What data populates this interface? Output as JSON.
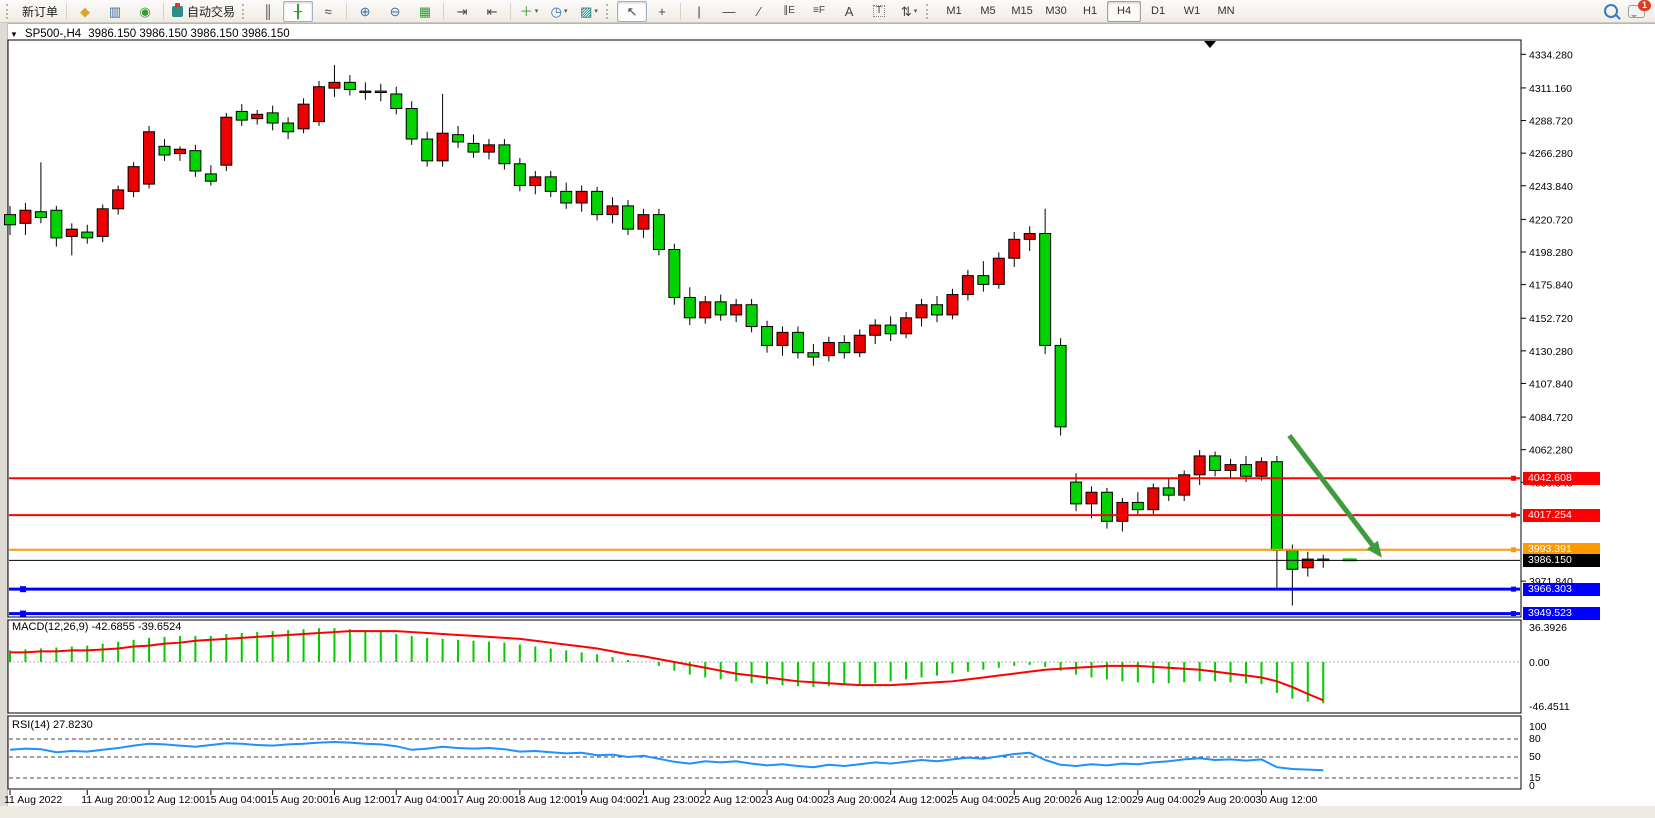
{
  "toolbar": {
    "new_order_label": "新订单",
    "autotrading_label": "自动交易",
    "badge_count": "1",
    "icons": {
      "metaeditor": "◆",
      "market_watch": "▥",
      "signals": "◉",
      "bar_chart": "║",
      "candle_chart": "╂",
      "line_chart": "≈",
      "zoom_in": "⊕",
      "zoom_out": "⊖",
      "tile_windows": "▦",
      "auto_scroll": "⇥",
      "chart_shift": "⇤",
      "indicators": "＋",
      "periods": "◷",
      "templates": "▨",
      "cursor": "↖",
      "crosshair": "+",
      "vertical_line": "|",
      "horizontal_line": "—",
      "trendline": "∕",
      "channel": "∥E",
      "fibonacci": "≡F",
      "text": "A",
      "text_label": "T",
      "arrows": "⇅",
      "caret": "▾"
    },
    "timeframes": [
      {
        "label": "M1",
        "active": false
      },
      {
        "label": "M5",
        "active": false
      },
      {
        "label": "M15",
        "active": false
      },
      {
        "label": "M30",
        "active": false
      },
      {
        "label": "H1",
        "active": false
      },
      {
        "label": "H4",
        "active": true
      },
      {
        "label": "D1",
        "active": false
      },
      {
        "label": "W1",
        "active": false
      },
      {
        "label": "MN",
        "active": false
      }
    ]
  },
  "chart": {
    "expander_glyph": "▼",
    "symbol_period": "SP500-,H4",
    "ohlc_text": "3986.150 3986.150 3986.150 3986.150"
  },
  "chart_data": {
    "type": "candlestick",
    "symbol": "SP500-",
    "period": "H4",
    "colors": {
      "bull": "#ee0000",
      "bear": "#00d300",
      "wick": "#000000",
      "hline_red": "#ff0000",
      "hline_orange": "#ff9900",
      "hline_blue": "#0000ff",
      "price_line": "#000000",
      "price_label_bg": "#000000",
      "macd_hist": "#00cc00",
      "macd_signal": "#ff0000",
      "rsi_line": "#1e90ff",
      "arrow": "#3e9b3e"
    },
    "price_axis": {
      "ticks": [
        "4334.280",
        "4311.160",
        "4288.720",
        "4266.280",
        "4243.840",
        "4220.720",
        "4198.280",
        "4175.840",
        "4152.720",
        "4130.280",
        "4107.840",
        "4084.720",
        "4062.280",
        "4039.840",
        "3971.840"
      ]
    },
    "hlines": [
      {
        "price": 4042.608,
        "label": "4042.608",
        "color": "#ff0000",
        "width": 2,
        "selected": false
      },
      {
        "price": 4017.254,
        "label": "4017.254",
        "color": "#ff0000",
        "width": 2,
        "selected": false
      },
      {
        "price": 3993.391,
        "label": "3993.391",
        "color": "#ff9900",
        "width": 2,
        "selected": false
      },
      {
        "price": 3966.303,
        "label": "3966.303",
        "color": "#0000ff",
        "width": 3,
        "selected": true
      },
      {
        "price": 3949.523,
        "label": "3949.523",
        "color": "#0000ff",
        "width": 3,
        "selected": true
      }
    ],
    "current_price": {
      "value": 3986.15,
      "label": "3986.150"
    },
    "arrow": {
      "from_bar": 82.8,
      "from_price": 4072,
      "to_bar": 88.8,
      "to_price": 3988
    },
    "time_labels": [
      {
        "bar": 0,
        "label": "11 Aug 2022"
      },
      {
        "bar": 5,
        "label": "11 Aug 20:00"
      },
      {
        "bar": 9,
        "label": "12 Aug 12:00"
      },
      {
        "bar": 13,
        "label": "15 Aug 04:00"
      },
      {
        "bar": 17,
        "label": "15 Aug 20:00"
      },
      {
        "bar": 21,
        "label": "16 Aug 12:00"
      },
      {
        "bar": 25,
        "label": "17 Aug 04:00"
      },
      {
        "bar": 29,
        "label": "17 Aug 20:00"
      },
      {
        "bar": 33,
        "label": "18 Aug 12:00"
      },
      {
        "bar": 37,
        "label": "19 Aug 04:00"
      },
      {
        "bar": 41,
        "label": "21 Aug 23:00"
      },
      {
        "bar": 45,
        "label": "22 Aug 12:00"
      },
      {
        "bar": 49,
        "label": "23 Aug 04:00"
      },
      {
        "bar": 53,
        "label": "23 Aug 20:00"
      },
      {
        "bar": 57,
        "label": "24 Aug 12:00"
      },
      {
        "bar": 61,
        "label": "25 Aug 04:00"
      },
      {
        "bar": 65,
        "label": "25 Aug 20:00"
      },
      {
        "bar": 69,
        "label": "26 Aug 12:00"
      },
      {
        "bar": 73,
        "label": "29 Aug 04:00"
      },
      {
        "bar": 77,
        "label": "29 Aug 20:00"
      },
      {
        "bar": 81,
        "label": "30 Aug 12:00"
      }
    ],
    "candles": [
      [
        4224,
        4230,
        4210,
        4217
      ],
      [
        4218,
        4232,
        4210,
        4227
      ],
      [
        4226,
        4260,
        4218,
        4222
      ],
      [
        4227,
        4230,
        4202,
        4208
      ],
      [
        4209,
        4218,
        4196,
        4214
      ],
      [
        4212,
        4217,
        4204,
        4208
      ],
      [
        4209,
        4231,
        4205,
        4228
      ],
      [
        4228,
        4244,
        4224,
        4241
      ],
      [
        4240,
        4260,
        4236,
        4257
      ],
      [
        4245,
        4285,
        4242,
        4281
      ],
      [
        4271,
        4276,
        4261,
        4265
      ],
      [
        4266,
        4271,
        4261,
        4269
      ],
      [
        4268,
        4272,
        4250,
        4254
      ],
      [
        4252,
        4258,
        4244,
        4247
      ],
      [
        4258,
        4294,
        4254,
        4291
      ],
      [
        4295,
        4300,
        4285,
        4289
      ],
      [
        4290,
        4296,
        4286,
        4293
      ],
      [
        4294,
        4299,
        4282,
        4287
      ],
      [
        4287,
        4291,
        4276,
        4281
      ],
      [
        4283,
        4304,
        4280,
        4300
      ],
      [
        4288,
        4316,
        4285,
        4312
      ],
      [
        4311,
        4327,
        4305,
        4315
      ],
      [
        4315,
        4320,
        4306,
        4310
      ],
      [
        4309,
        4315,
        4303,
        4309
      ],
      [
        4309,
        4314,
        4302,
        4308
      ],
      [
        4307,
        4312,
        4293,
        4297
      ],
      [
        4297,
        4302,
        4272,
        4276
      ],
      [
        4276,
        4281,
        4257,
        4261
      ],
      [
        4261,
        4307,
        4257,
        4280
      ],
      [
        4279,
        4285,
        4270,
        4274
      ],
      [
        4273,
        4279,
        4263,
        4267
      ],
      [
        4267,
        4276,
        4262,
        4272
      ],
      [
        4272,
        4276,
        4255,
        4259
      ],
      [
        4259,
        4263,
        4240,
        4244
      ],
      [
        4244,
        4254,
        4238,
        4250
      ],
      [
        4250,
        4254,
        4236,
        4240
      ],
      [
        4240,
        4246,
        4228,
        4232
      ],
      [
        4232,
        4244,
        4226,
        4240
      ],
      [
        4240,
        4243,
        4220,
        4224
      ],
      [
        4224,
        4236,
        4218,
        4230
      ],
      [
        4230,
        4234,
        4210,
        4214
      ],
      [
        4214,
        4228,
        4208,
        4224
      ],
      [
        4224,
        4228,
        4196,
        4200
      ],
      [
        4200,
        4204,
        4162,
        4167
      ],
      [
        4167,
        4174,
        4148,
        4153
      ],
      [
        4153,
        4168,
        4149,
        4164
      ],
      [
        4164,
        4169,
        4151,
        4155
      ],
      [
        4155,
        4166,
        4150,
        4162
      ],
      [
        4162,
        4166,
        4143,
        4147
      ],
      [
        4147,
        4151,
        4129,
        4134
      ],
      [
        4134,
        4147,
        4127,
        4143
      ],
      [
        4143,
        4147,
        4125,
        4129
      ],
      [
        4129,
        4135,
        4120,
        4126
      ],
      [
        4127,
        4140,
        4123,
        4136
      ],
      [
        4136,
        4141,
        4125,
        4129
      ],
      [
        4129,
        4145,
        4126,
        4141
      ],
      [
        4141,
        4152,
        4135,
        4148
      ],
      [
        4148,
        4154,
        4137,
        4142
      ],
      [
        4142,
        4157,
        4139,
        4153
      ],
      [
        4153,
        4166,
        4147,
        4162
      ],
      [
        4162,
        4168,
        4150,
        4155
      ],
      [
        4155,
        4173,
        4152,
        4169
      ],
      [
        4169,
        4186,
        4165,
        4182
      ],
      [
        4182,
        4192,
        4171,
        4176
      ],
      [
        4176,
        4198,
        4173,
        4194
      ],
      [
        4194,
        4212,
        4188,
        4207
      ],
      [
        4207,
        4216,
        4199,
        4211
      ],
      [
        4211,
        4228,
        4128,
        4134
      ],
      [
        4134,
        4139,
        4072,
        4078
      ],
      [
        4040,
        4046,
        4020,
        4025
      ],
      [
        4025,
        4037,
        4015,
        4033
      ],
      [
        4033,
        4036,
        4008,
        4013
      ],
      [
        4013,
        4029,
        4006,
        4026
      ],
      [
        4026,
        4033,
        4017,
        4021
      ],
      [
        4021,
        4039,
        4017,
        4036
      ],
      [
        4036,
        4043,
        4027,
        4031
      ],
      [
        4031,
        4048,
        4027,
        4045
      ],
      [
        4045,
        4062,
        4038,
        4058
      ],
      [
        4058,
        4061,
        4044,
        4048
      ],
      [
        4048,
        4056,
        4042,
        4052
      ],
      [
        4052,
        4058,
        4040,
        4044
      ],
      [
        4044,
        4057,
        4041,
        4054
      ],
      [
        4054,
        4058,
        3966,
        3993
      ],
      [
        3993,
        3997,
        3955,
        3980
      ],
      [
        3981,
        3992,
        3975,
        3987
      ],
      [
        3987,
        3990,
        3981,
        3986
      ]
    ],
    "macd": {
      "label": "MACD(12,26,9)",
      "values_label": "-42.6855 -39.6524",
      "axis": {
        "max_label": "36.3926",
        "zero_label": "0.00",
        "min_label": "-46.4511"
      },
      "histogram": [
        12,
        13,
        14,
        15,
        16,
        17,
        19,
        21,
        23,
        25,
        26,
        27,
        27,
        27,
        29,
        30,
        31,
        32,
        33,
        34,
        35,
        35,
        34,
        33,
        31,
        29,
        27,
        25,
        24,
        23,
        22,
        21,
        20,
        18,
        16,
        14,
        12,
        10,
        8,
        5,
        2,
        0,
        -4,
        -9,
        -13,
        -16,
        -18,
        -20,
        -22,
        -23,
        -24,
        -25,
        -26,
        -25,
        -24,
        -23,
        -22,
        -20,
        -18,
        -16,
        -14,
        -12,
        -10,
        -8,
        -6,
        -4,
        -3,
        -5,
        -9,
        -13,
        -16,
        -18,
        -20,
        -21,
        -22,
        -22,
        -21,
        -20,
        -20,
        -21,
        -22,
        -23,
        -32,
        -38,
        -41,
        -42.7
      ],
      "signal": [
        10,
        10,
        11,
        11,
        12,
        12,
        13,
        14,
        16,
        17,
        19,
        20,
        22,
        23,
        24,
        25,
        26,
        27,
        28,
        29,
        30,
        31,
        32,
        32,
        32,
        32,
        31,
        30,
        29,
        28,
        27,
        26,
        25,
        24,
        22,
        20,
        18,
        16,
        14,
        11,
        8,
        6,
        3,
        0,
        -3,
        -6,
        -9,
        -12,
        -14,
        -16,
        -18,
        -20,
        -21,
        -22,
        -23,
        -24,
        -24,
        -24,
        -23,
        -22,
        -21,
        -20,
        -18,
        -16,
        -14,
        -12,
        -10,
        -8,
        -7,
        -6,
        -5,
        -4,
        -4,
        -4,
        -5,
        -6,
        -7,
        -8,
        -10,
        -12,
        -14,
        -16,
        -20,
        -26,
        -33,
        -39.65
      ]
    },
    "rsi": {
      "label": "RSI(14)",
      "value_label": "27.8230",
      "levels": [
        80,
        50,
        15
      ],
      "axis_labels": [
        "100",
        "80",
        "50",
        "15",
        "0"
      ],
      "values": [
        62,
        64,
        63,
        58,
        60,
        59,
        62,
        65,
        69,
        72,
        71,
        69,
        67,
        70,
        73,
        72,
        70,
        69,
        71,
        72,
        74,
        75,
        74,
        72,
        71,
        68,
        62,
        64,
        67,
        65,
        64,
        65,
        63,
        59,
        60,
        58,
        56,
        57,
        53,
        54,
        50,
        52,
        47,
        42,
        39,
        43,
        41,
        43,
        39,
        36,
        38,
        35,
        33,
        37,
        35,
        38,
        41,
        39,
        42,
        45,
        43,
        46,
        49,
        47,
        51,
        55,
        57,
        45,
        37,
        35,
        38,
        36,
        39,
        38,
        41,
        43,
        46,
        48,
        45,
        46,
        44,
        46,
        33,
        30,
        29,
        28
      ]
    }
  }
}
